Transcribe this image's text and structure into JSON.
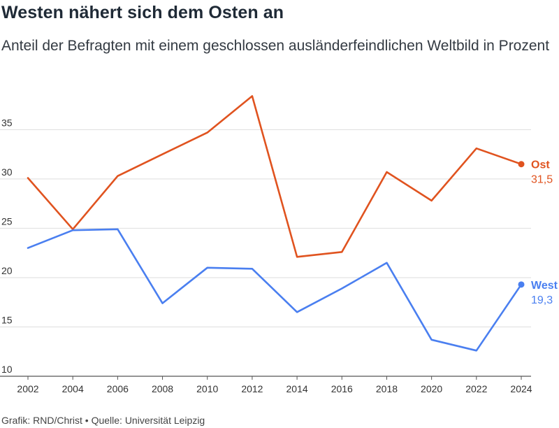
{
  "chart_data": {
    "type": "line",
    "title": "Westen nähert sich dem Osten an",
    "subtitle": "Anteil der Befragten mit einem geschlossen ausländerfeindlichen Weltbild in Prozent",
    "x": [
      2002,
      2004,
      2006,
      2008,
      2010,
      2012,
      2014,
      2016,
      2018,
      2020,
      2022,
      2024
    ],
    "x_tick_labels": [
      "2002",
      "2004",
      "2006",
      "2008",
      "2010",
      "2012",
      "2014",
      "2016",
      "2018",
      "2020",
      "2022",
      "2024"
    ],
    "y_tick_labels": [
      "10",
      "15",
      "20",
      "25",
      "30",
      "35"
    ],
    "y_ticks": [
      10,
      15,
      20,
      25,
      30,
      35
    ],
    "ylim": [
      10,
      38.5
    ],
    "grid": true,
    "series": [
      {
        "name": "Ost",
        "color": "#e0531f",
        "values": [
          30.1,
          24.9,
          30.3,
          32.5,
          34.7,
          38.4,
          22.1,
          22.6,
          30.7,
          27.8,
          33.1,
          31.5
        ],
        "end_label": "31,5"
      },
      {
        "name": "West",
        "color": "#4a7ff0",
        "values": [
          23.0,
          24.8,
          24.9,
          17.4,
          21.0,
          20.9,
          16.5,
          18.9,
          21.5,
          13.7,
          12.6,
          19.3
        ],
        "end_label": "19,3"
      }
    ]
  },
  "footer": "Grafik: RND/Christ • Quelle: Universität Leipzig"
}
